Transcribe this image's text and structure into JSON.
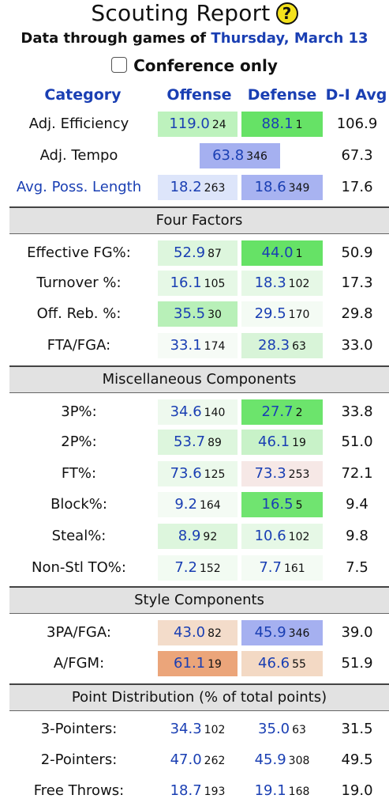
{
  "header": {
    "title": "Scouting Report",
    "help_icon": "?",
    "subtitle_prefix": "Data through games of",
    "subtitle_date": "Thursday, March 13",
    "conference_only_label": "Conference only"
  },
  "columns": {
    "category": "Category",
    "offense": "Offense",
    "defense": "Defense",
    "d1_avg": "D-I Avg"
  },
  "top_rows": [
    {
      "label": "Adj. Efficiency",
      "off": "119.0",
      "off_rank": "24",
      "def": "88.1",
      "def_rank": "1",
      "avg": "106.9",
      "off_bg": "#bdf2bd",
      "def_bg": "#66e266"
    },
    {
      "label": "Adj. Tempo",
      "val": "63.8",
      "rank": "346",
      "avg": "67.3",
      "bg": "#a5b0f0"
    },
    {
      "label": "Avg. Poss. Length",
      "off": "18.2",
      "off_rank": "263",
      "def": "18.6",
      "def_rank": "349",
      "avg": "17.6",
      "off_bg": "#dde5fa",
      "def_bg": "#a8b3f1"
    }
  ],
  "sections": {
    "four_factors": "Four Factors",
    "misc": "Miscellaneous Components",
    "style": "Style Components",
    "point_dist": "Point Distribution (% of total points)"
  },
  "four_factors": [
    {
      "label": "Effective FG%:",
      "off": "52.9",
      "off_rank": "87",
      "def": "44.0",
      "def_rank": "1",
      "avg": "50.9",
      "off_bg": "#ddf6dd",
      "def_bg": "#66e266"
    },
    {
      "label": "Turnover %:",
      "off": "16.1",
      "off_rank": "105",
      "def": "18.3",
      "def_rank": "102",
      "avg": "17.3",
      "off_bg": "#e6f8e6",
      "def_bg": "#e6f8e6"
    },
    {
      "label": "Off. Reb. %:",
      "off": "35.5",
      "off_rank": "30",
      "def": "29.5",
      "def_rank": "170",
      "avg": "29.8",
      "off_bg": "#b8f0b8",
      "def_bg": "#f4fbf4"
    },
    {
      "label": "FTA/FGA:",
      "off": "33.1",
      "off_rank": "174",
      "def": "28.3",
      "def_rank": "63",
      "avg": "33.0",
      "off_bg": "#f6fbf6",
      "def_bg": "#d8f4d8"
    }
  ],
  "misc": [
    {
      "label": "3P%:",
      "off": "34.6",
      "off_rank": "140",
      "def": "27.7",
      "def_rank": "2",
      "avg": "33.8",
      "off_bg": "#eef9ee",
      "def_bg": "#6ce46c"
    },
    {
      "label": "2P%:",
      "off": "53.7",
      "off_rank": "89",
      "def": "46.1",
      "def_rank": "19",
      "avg": "51.0",
      "off_bg": "#ddf6dd",
      "def_bg": "#c8f2c8"
    },
    {
      "label": "FT%:",
      "off": "73.6",
      "off_rank": "125",
      "def": "73.3",
      "def_rank": "253",
      "avg": "72.1",
      "off_bg": "#ebf9eb",
      "def_bg": "#f6e8e6"
    },
    {
      "label": "Block%:",
      "off": "9.2",
      "off_rank": "164",
      "def": "16.5",
      "def_rank": "5",
      "avg": "9.4",
      "off_bg": "#f4fbf4",
      "def_bg": "#70e470"
    },
    {
      "label": "Steal%:",
      "off": "8.9",
      "off_rank": "92",
      "def": "10.6",
      "def_rank": "102",
      "avg": "9.8",
      "off_bg": "#ddf6dd",
      "def_bg": "#e6f8e6"
    },
    {
      "label": "Non-Stl TO%:",
      "off": "7.2",
      "off_rank": "152",
      "def": "7.7",
      "def_rank": "161",
      "avg": "7.5",
      "off_bg": "#f2fbf2",
      "def_bg": "#f4fbf4"
    }
  ],
  "style": [
    {
      "label": "3PA/FGA:",
      "off": "43.0",
      "off_rank": "82",
      "def": "45.9",
      "def_rank": "346",
      "avg": "39.0",
      "off_bg": "#f3dcca",
      "def_bg": "#a5b0f0"
    },
    {
      "label": "A/FGM:",
      "off": "61.1",
      "off_rank": "19",
      "def": "46.6",
      "def_rank": "55",
      "avg": "51.9",
      "off_bg": "#eba57a",
      "def_bg": "#f3d9c4"
    }
  ],
  "point_dist": [
    {
      "label": "3-Pointers:",
      "off": "34.3",
      "off_rank": "102",
      "def": "35.0",
      "def_rank": "63",
      "avg": "31.5"
    },
    {
      "label": "2-Pointers:",
      "off": "47.0",
      "off_rank": "262",
      "def": "45.9",
      "def_rank": "308",
      "avg": "49.5"
    },
    {
      "label": "Free Throws:",
      "off": "18.7",
      "off_rank": "193",
      "def": "19.1",
      "def_rank": "168",
      "avg": "19.0"
    }
  ]
}
